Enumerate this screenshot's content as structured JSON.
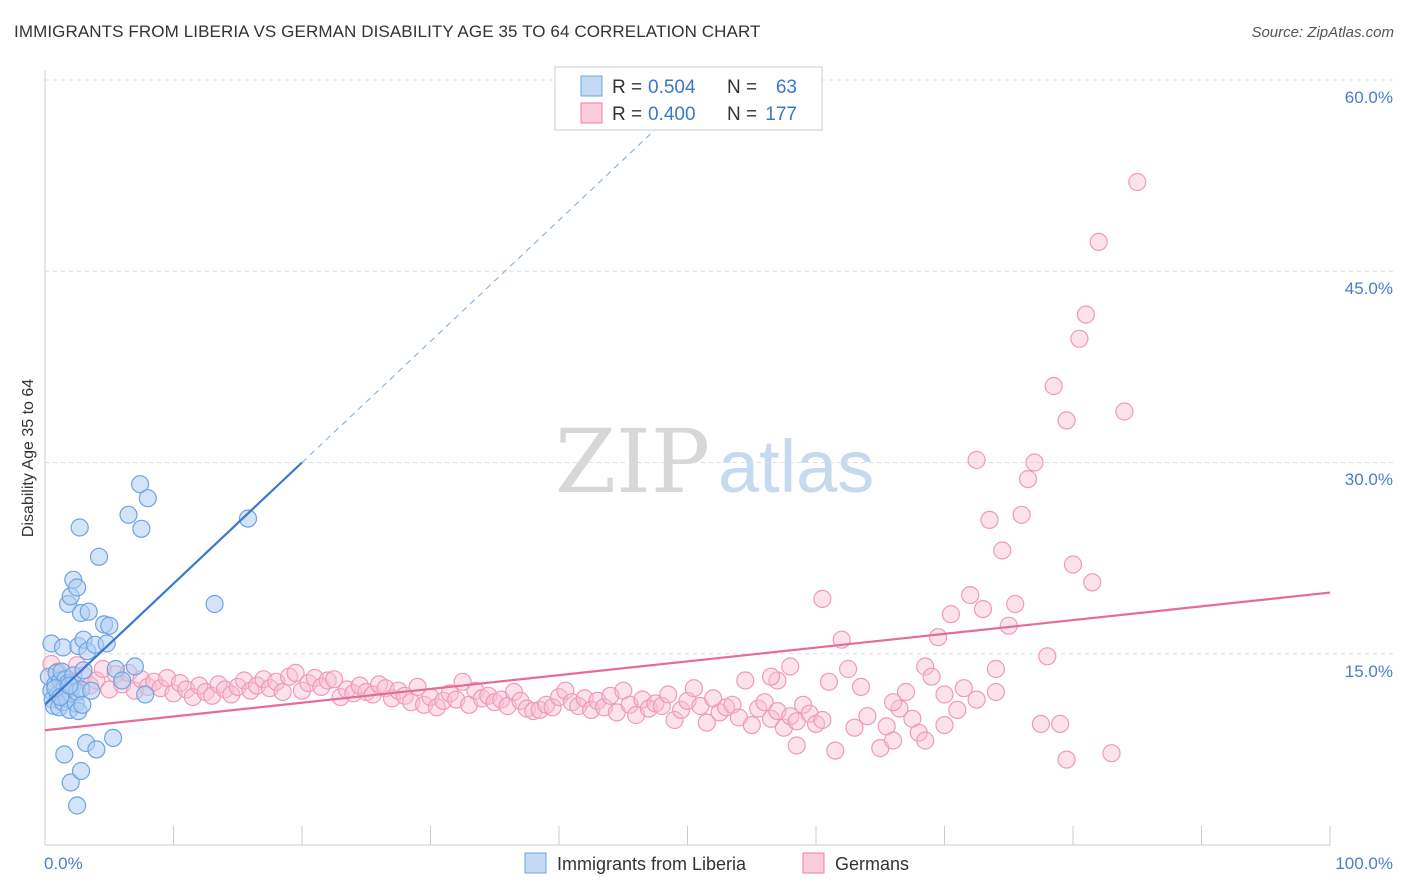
{
  "header": {
    "title": "IMMIGRANTS FROM LIBERIA VS GERMAN DISABILITY AGE 35 TO 64 CORRELATION CHART",
    "source": "Source: ZipAtlas.com"
  },
  "watermark": {
    "zip": "ZIP",
    "atlas": "atlas"
  },
  "legend_top": [
    {
      "r_label": "R =",
      "r_value": "0.504",
      "n_label": "N =",
      "n_value": "63",
      "color": "#6fa3e0"
    },
    {
      "r_label": "R =",
      "r_value": "0.400",
      "n_label": "N =",
      "n_value": "177",
      "color": "#f07fa6"
    }
  ],
  "legend_bottom": [
    {
      "label": "Immigrants from Liberia",
      "color": "#6fa3e0"
    },
    {
      "label": "Germans",
      "color": "#f07fa6"
    }
  ],
  "axes": {
    "ylabel": "Disability Age 35 to 64",
    "x_tick_left": "0.0%",
    "x_tick_right": "100.0%",
    "y_ticks": [
      "15.0%",
      "30.0%",
      "45.0%",
      "60.0%"
    ]
  },
  "chart_data": {
    "type": "scatter",
    "title": "IMMIGRANTS FROM LIBERIA VS GERMAN DISABILITY AGE 35 TO 64 CORRELATION CHART",
    "xlabel": "",
    "ylabel": "Disability Age 35 to 64",
    "xlim": [
      0,
      100
    ],
    "ylim": [
      0,
      63
    ],
    "grid": "horizontal dashed",
    "legend_placement": "top-center",
    "series": [
      {
        "name": "Immigrants from Liberia",
        "color": "#6fa3e0",
        "trend": {
          "x0": 0,
          "y0": 11.0,
          "x1": 20,
          "y1": 30.0,
          "dashed_to_x": 48
        },
        "points": [
          [
            0.3,
            13.2
          ],
          [
            0.5,
            12.1
          ],
          [
            0.6,
            11.4
          ],
          [
            0.7,
            10.9
          ],
          [
            0.8,
            12.6
          ],
          [
            0.9,
            13.5
          ],
          [
            1.0,
            11.8
          ],
          [
            1.1,
            10.8
          ],
          [
            1.2,
            12.9
          ],
          [
            1.3,
            13.6
          ],
          [
            1.4,
            11.2
          ],
          [
            1.5,
            12.3
          ],
          [
            1.6,
            13.0
          ],
          [
            1.7,
            11.5
          ],
          [
            1.8,
            12.7
          ],
          [
            1.9,
            10.6
          ],
          [
            2.0,
            11.9
          ],
          [
            2.1,
            12.4
          ],
          [
            2.2,
            13.3
          ],
          [
            2.4,
            11.1
          ],
          [
            2.5,
            12.0
          ],
          [
            2.6,
            10.5
          ],
          [
            2.8,
            12.2
          ],
          [
            2.9,
            11.0
          ],
          [
            3.0,
            13.7
          ],
          [
            0.5,
            15.8
          ],
          [
            1.4,
            15.5
          ],
          [
            1.8,
            18.9
          ],
          [
            2.0,
            19.5
          ],
          [
            2.2,
            20.8
          ],
          [
            2.5,
            20.2
          ],
          [
            2.6,
            15.6
          ],
          [
            2.8,
            18.2
          ],
          [
            3.0,
            16.1
          ],
          [
            3.3,
            15.2
          ],
          [
            3.4,
            18.3
          ],
          [
            3.6,
            12.1
          ],
          [
            3.9,
            15.7
          ],
          [
            4.2,
            22.6
          ],
          [
            4.6,
            17.3
          ],
          [
            4.8,
            15.8
          ],
          [
            5.0,
            17.2
          ],
          [
            5.3,
            8.4
          ],
          [
            5.5,
            13.8
          ],
          [
            6.0,
            12.9
          ],
          [
            7.0,
            14.0
          ],
          [
            7.4,
            28.3
          ],
          [
            7.5,
            24.8
          ],
          [
            7.8,
            11.8
          ],
          [
            8.0,
            27.2
          ],
          [
            6.5,
            25.9
          ],
          [
            2.7,
            24.9
          ],
          [
            15.8,
            25.6
          ],
          [
            13.2,
            18.9
          ],
          [
            3.2,
            8.0
          ],
          [
            4.0,
            7.5
          ],
          [
            1.5,
            7.1
          ],
          [
            2.0,
            4.9
          ],
          [
            2.8,
            5.8
          ],
          [
            2.5,
            3.1
          ],
          [
            0.8,
            12.3
          ],
          [
            1.2,
            11.6
          ],
          [
            1.9,
            12.5
          ]
        ]
      },
      {
        "name": "Germans",
        "color": "#f07fa6",
        "trend": {
          "x0": 0,
          "y0": 9.0,
          "x1": 100,
          "y1": 19.8
        },
        "points": [
          [
            0.5,
            14.2
          ],
          [
            1.0,
            13.6
          ],
          [
            1.5,
            13.1
          ],
          [
            2.0,
            12.8
          ],
          [
            2.5,
            14.1
          ],
          [
            3.0,
            13.3
          ],
          [
            3.5,
            12.5
          ],
          [
            4.0,
            12.9
          ],
          [
            4.5,
            13.8
          ],
          [
            5.0,
            12.2
          ],
          [
            5.5,
            13.4
          ],
          [
            6.0,
            12.6
          ],
          [
            6.5,
            13.5
          ],
          [
            7.0,
            12.1
          ],
          [
            7.5,
            13.0
          ],
          [
            8.0,
            12.4
          ],
          [
            8.5,
            12.8
          ],
          [
            9.0,
            12.3
          ],
          [
            9.5,
            13.1
          ],
          [
            10.0,
            11.9
          ],
          [
            10.5,
            12.7
          ],
          [
            11.0,
            12.2
          ],
          [
            11.5,
            11.6
          ],
          [
            12.0,
            12.5
          ],
          [
            12.5,
            12.0
          ],
          [
            13.0,
            11.7
          ],
          [
            13.5,
            12.6
          ],
          [
            14.0,
            12.2
          ],
          [
            14.5,
            11.8
          ],
          [
            15.0,
            12.4
          ],
          [
            15.5,
            12.9
          ],
          [
            16.0,
            12.1
          ],
          [
            16.5,
            12.5
          ],
          [
            17.0,
            13.0
          ],
          [
            17.5,
            12.3
          ],
          [
            18.0,
            12.8
          ],
          [
            18.5,
            12.0
          ],
          [
            19.0,
            13.2
          ],
          [
            19.5,
            13.5
          ],
          [
            20.0,
            12.1
          ],
          [
            20.5,
            12.7
          ],
          [
            21.0,
            13.1
          ],
          [
            21.5,
            12.4
          ],
          [
            22.0,
            12.9
          ],
          [
            22.5,
            13.0
          ],
          [
            23.0,
            11.6
          ],
          [
            23.5,
            12.2
          ],
          [
            24.0,
            11.9
          ],
          [
            24.5,
            12.5
          ],
          [
            25.0,
            12.0
          ],
          [
            25.5,
            11.8
          ],
          [
            26.0,
            12.6
          ],
          [
            26.5,
            12.3
          ],
          [
            27.0,
            11.5
          ],
          [
            27.5,
            12.1
          ],
          [
            28.0,
            11.7
          ],
          [
            28.5,
            11.2
          ],
          [
            29.0,
            12.4
          ],
          [
            29.5,
            11.0
          ],
          [
            30.0,
            11.6
          ],
          [
            30.5,
            10.8
          ],
          [
            31.0,
            11.3
          ],
          [
            31.5,
            11.9
          ],
          [
            32.0,
            11.4
          ],
          [
            32.5,
            12.8
          ],
          [
            33.0,
            11.0
          ],
          [
            33.5,
            12.1
          ],
          [
            34.0,
            11.5
          ],
          [
            34.5,
            11.7
          ],
          [
            35.0,
            11.2
          ],
          [
            35.5,
            11.4
          ],
          [
            36.0,
            10.9
          ],
          [
            36.5,
            12.0
          ],
          [
            37.0,
            11.3
          ],
          [
            37.5,
            10.7
          ],
          [
            38.0,
            10.5
          ],
          [
            38.5,
            10.6
          ],
          [
            39.0,
            11.0
          ],
          [
            39.5,
            10.8
          ],
          [
            40.0,
            11.6
          ],
          [
            40.5,
            12.1
          ],
          [
            41.0,
            11.2
          ],
          [
            41.5,
            10.9
          ],
          [
            42.0,
            11.5
          ],
          [
            42.5,
            10.6
          ],
          [
            43.0,
            11.3
          ],
          [
            43.5,
            10.8
          ],
          [
            44.0,
            11.7
          ],
          [
            44.5,
            10.4
          ],
          [
            45.0,
            12.1
          ],
          [
            45.5,
            11.0
          ],
          [
            46.0,
            10.2
          ],
          [
            46.5,
            11.4
          ],
          [
            47.0,
            10.7
          ],
          [
            47.5,
            11.1
          ],
          [
            48.0,
            10.9
          ],
          [
            48.5,
            11.8
          ],
          [
            49.0,
            9.8
          ],
          [
            49.5,
            10.6
          ],
          [
            50.0,
            11.3
          ],
          [
            50.5,
            12.3
          ],
          [
            51.0,
            10.9
          ],
          [
            51.5,
            9.6
          ],
          [
            52.0,
            11.5
          ],
          [
            52.5,
            10.4
          ],
          [
            53.0,
            10.8
          ],
          [
            53.5,
            11.0
          ],
          [
            54.0,
            10.0
          ],
          [
            54.5,
            12.9
          ],
          [
            55.0,
            9.4
          ],
          [
            55.5,
            10.7
          ],
          [
            56.0,
            11.2
          ],
          [
            56.5,
            9.9
          ],
          [
            57.0,
            10.5
          ],
          [
            57.5,
            9.2
          ],
          [
            58.0,
            10.1
          ],
          [
            58.5,
            9.7
          ],
          [
            59.0,
            11.0
          ],
          [
            59.5,
            10.3
          ],
          [
            60.0,
            9.5
          ],
          [
            60.5,
            9.8
          ],
          [
            61.0,
            12.8
          ],
          [
            62.0,
            16.1
          ],
          [
            63.0,
            9.2
          ],
          [
            63.5,
            12.4
          ],
          [
            64.0,
            10.1
          ],
          [
            65.0,
            7.6
          ],
          [
            65.5,
            9.3
          ],
          [
            66.0,
            8.2
          ],
          [
            66.5,
            10.7
          ],
          [
            67.0,
            12.0
          ],
          [
            67.5,
            9.9
          ],
          [
            68.0,
            8.8
          ],
          [
            68.5,
            14.0
          ],
          [
            69.0,
            13.2
          ],
          [
            69.5,
            16.3
          ],
          [
            70.0,
            9.4
          ],
          [
            70.5,
            18.1
          ],
          [
            71.0,
            10.6
          ],
          [
            71.5,
            12.3
          ],
          [
            72.0,
            19.6
          ],
          [
            72.5,
            30.2
          ],
          [
            73.0,
            18.5
          ],
          [
            73.5,
            25.5
          ],
          [
            74.0,
            12.0
          ],
          [
            74.5,
            23.1
          ],
          [
            75.0,
            17.2
          ],
          [
            75.5,
            18.9
          ],
          [
            76.0,
            25.9
          ],
          [
            76.5,
            28.7
          ],
          [
            77.0,
            30.0
          ],
          [
            78.0,
            14.8
          ],
          [
            78.5,
            36.0
          ],
          [
            79.0,
            9.5
          ],
          [
            79.5,
            33.3
          ],
          [
            80.0,
            22.0
          ],
          [
            80.5,
            39.7
          ],
          [
            81.0,
            41.6
          ],
          [
            81.5,
            20.6
          ],
          [
            82.0,
            47.3
          ],
          [
            84.0,
            34.0
          ],
          [
            85.0,
            52.0
          ],
          [
            60.5,
            19.3
          ],
          [
            58.5,
            7.8
          ],
          [
            61.5,
            7.4
          ],
          [
            79.5,
            6.7
          ],
          [
            83.0,
            7.2
          ],
          [
            58.0,
            14.0
          ],
          [
            57.0,
            12.9
          ],
          [
            56.5,
            13.2
          ],
          [
            62.5,
            13.8
          ],
          [
            66.0,
            11.2
          ],
          [
            68.5,
            8.2
          ],
          [
            70.0,
            11.8
          ],
          [
            72.5,
            11.4
          ],
          [
            74.0,
            13.8
          ],
          [
            77.5,
            9.5
          ]
        ]
      }
    ]
  }
}
